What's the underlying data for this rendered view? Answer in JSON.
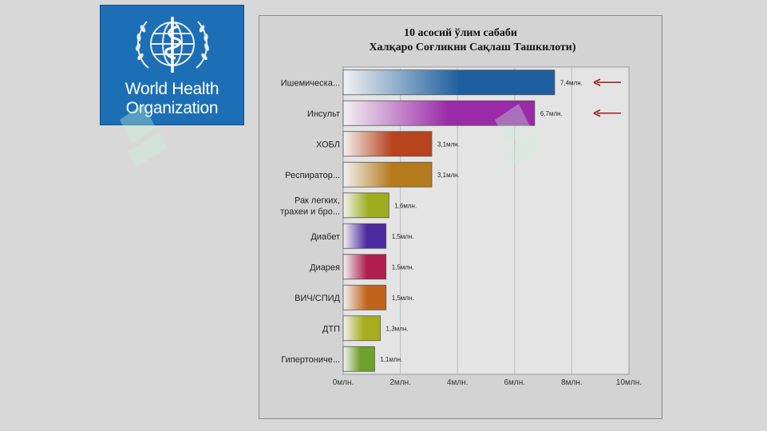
{
  "logo": {
    "line1": "World Health",
    "line2": "Organization",
    "background": "#1d6fb5"
  },
  "chart_data": {
    "type": "bar",
    "orientation": "horizontal",
    "title": "10 асосий ўлим сабаби",
    "subtitle": "Халқаро Соғликни Сақлаш Ташкилоти)",
    "categories": [
      "Ишемическа...",
      "Инсульт",
      "ХОБЛ",
      "Респиратор...",
      "Рак легких, трахеи и бро...",
      "Диабет",
      "Диарея",
      "ВИЧ/СПИД",
      "ДТП",
      "Гипертониче..."
    ],
    "values": [
      7.4,
      6.7,
      3.1,
      3.1,
      1.6,
      1.5,
      1.5,
      1.5,
      1.3,
      1.1
    ],
    "value_labels": [
      "7,4млн.",
      "6,7млн.",
      "3,1млн.",
      "3,1млн.",
      "1,6млн.",
      "1,5млн.",
      "1,5млн.",
      "1,5млн.",
      "1,3млн.",
      "1,1млн."
    ],
    "colors": [
      "#1f5fa0",
      "#9a2aa8",
      "#b8441e",
      "#b57a1c",
      "#9dad1e",
      "#4b2aa0",
      "#b01e50",
      "#c0641c",
      "#a8ad1e",
      "#6ea02a"
    ],
    "xlim": [
      0,
      10
    ],
    "xticks": [
      0,
      2,
      4,
      6,
      8,
      10
    ],
    "xtick_labels": [
      "0млн.",
      "2млн.",
      "4млн.",
      "6млн.",
      "8млн.",
      "10млн."
    ],
    "grid": true,
    "annotations": [
      {
        "type": "arrow",
        "target": "Ишемическа...",
        "color": "#9b1b1b"
      },
      {
        "type": "arrow",
        "target": "Инсульт",
        "color": "#9b1b1b"
      }
    ]
  }
}
